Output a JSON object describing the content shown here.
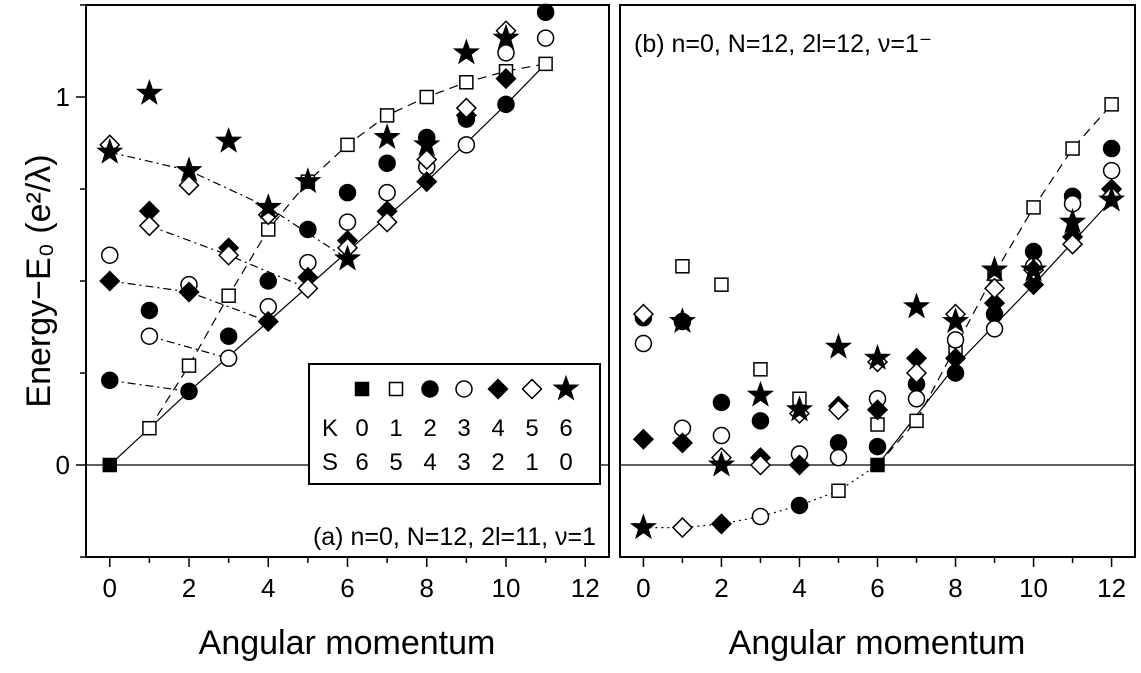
{
  "chart_data": [
    {
      "type": "scatter",
      "panel": "a",
      "annotation": "(a) n=0, N=12, 2l=11, ν=1",
      "xlabel": "Angular momentum",
      "ylabel": "Energy−E₀ (e²/λ)",
      "xlim": [
        -0.6,
        12.6
      ],
      "ylim": [
        -0.25,
        1.25
      ],
      "xticks": [
        0,
        2,
        4,
        6,
        8,
        10,
        12
      ],
      "yticks": [
        0,
        1
      ],
      "grid": false,
      "reference_line_y": 0,
      "series": [
        {
          "marker": "square-filled",
          "points": [
            [
              0,
              0.0
            ]
          ]
        },
        {
          "marker": "square-open",
          "points": [
            [
              1,
              0.1
            ],
            [
              2,
              0.27
            ],
            [
              3,
              0.46
            ],
            [
              4,
              0.64
            ],
            [
              5,
              0.77
            ],
            [
              6,
              0.87
            ],
            [
              7,
              0.95
            ],
            [
              8,
              1.0
            ],
            [
              9,
              1.04
            ],
            [
              10,
              1.07
            ],
            [
              11,
              1.09
            ]
          ]
        },
        {
          "marker": "circle-filled",
          "points": [
            [
              0,
              0.23
            ],
            [
              1,
              0.42
            ],
            [
              2,
              0.2
            ],
            [
              3,
              0.35
            ],
            [
              4,
              0.5
            ],
            [
              5,
              0.64
            ],
            [
              6,
              0.74
            ],
            [
              7,
              0.82
            ],
            [
              8,
              0.89
            ],
            [
              9,
              0.94
            ],
            [
              10,
              0.98
            ],
            [
              11,
              1.23
            ]
          ]
        },
        {
          "marker": "circle-open",
          "points": [
            [
              0,
              0.57
            ],
            [
              1,
              0.35
            ],
            [
              2,
              0.49
            ],
            [
              3,
              0.29
            ],
            [
              4,
              0.43
            ],
            [
              5,
              0.55
            ],
            [
              6,
              0.66
            ],
            [
              7,
              0.74
            ],
            [
              8,
              0.81
            ],
            [
              9,
              0.87
            ],
            [
              10,
              1.12
            ],
            [
              11,
              1.16
            ]
          ]
        },
        {
          "marker": "diamond-filled",
          "points": [
            [
              0,
              0.5
            ],
            [
              1,
              0.69
            ],
            [
              2,
              0.47
            ],
            [
              3,
              0.59
            ],
            [
              4,
              0.39
            ],
            [
              5,
              0.51
            ],
            [
              6,
              0.61
            ],
            [
              7,
              0.69
            ],
            [
              8,
              0.77
            ],
            [
              9,
              0.95
            ],
            [
              10,
              1.05
            ]
          ]
        },
        {
          "marker": "diamond-open",
          "points": [
            [
              0,
              0.87
            ],
            [
              1,
              0.65
            ],
            [
              2,
              0.76
            ],
            [
              3,
              0.57
            ],
            [
              4,
              0.68
            ],
            [
              5,
              0.48
            ],
            [
              6,
              0.59
            ],
            [
              7,
              0.66
            ],
            [
              8,
              0.83
            ],
            [
              9,
              0.97
            ],
            [
              10,
              1.18
            ]
          ]
        },
        {
          "marker": "star-filled",
          "points": [
            [
              0,
              0.85
            ],
            [
              1,
              1.01
            ],
            [
              2,
              0.8
            ],
            [
              3,
              0.88
            ],
            [
              4,
              0.7
            ],
            [
              5,
              0.77
            ],
            [
              6,
              0.56
            ],
            [
              7,
              0.89
            ],
            [
              8,
              0.87
            ],
            [
              9,
              1.12
            ],
            [
              10,
              1.16
            ]
          ]
        }
      ],
      "guide_lines": [
        {
          "style": "solid",
          "points": [
            [
              0,
              0.0
            ],
            [
              2,
              0.2
            ],
            [
              4,
              0.39
            ],
            [
              6,
              0.58
            ],
            [
              8,
              0.77
            ],
            [
              10,
              0.98
            ],
            [
              11,
              1.09
            ]
          ]
        },
        {
          "style": "dashed",
          "points": [
            [
              1,
              0.1
            ],
            [
              2,
              0.27
            ],
            [
              3,
              0.46
            ],
            [
              4,
              0.64
            ],
            [
              5,
              0.77
            ],
            [
              6,
              0.87
            ],
            [
              7,
              0.95
            ],
            [
              8,
              1.0
            ],
            [
              9,
              1.04
            ],
            [
              10,
              1.07
            ],
            [
              11,
              1.09
            ]
          ]
        },
        {
          "style": "dashdot",
          "points": [
            [
              0,
              0.23
            ],
            [
              2,
              0.2
            ]
          ]
        },
        {
          "style": "dashdot",
          "points": [
            [
              1,
              0.35
            ],
            [
              3,
              0.29
            ]
          ]
        },
        {
          "style": "dashdot",
          "points": [
            [
              0,
              0.5
            ],
            [
              2,
              0.47
            ],
            [
              4,
              0.39
            ]
          ]
        },
        {
          "style": "dashdot",
          "points": [
            [
              1,
              0.65
            ],
            [
              3,
              0.57
            ],
            [
              5,
              0.48
            ]
          ]
        },
        {
          "style": "dashdot",
          "points": [
            [
              0,
              0.85
            ],
            [
              2,
              0.8
            ],
            [
              4,
              0.7
            ],
            [
              6,
              0.56
            ]
          ]
        }
      ],
      "legend": {
        "position": "lower-right",
        "markers": [
          "square-filled",
          "square-open",
          "circle-filled",
          "circle-open",
          "diamond-filled",
          "diamond-open",
          "star-filled"
        ],
        "row_K_label": "K",
        "row_K": [
          "0",
          "1",
          "2",
          "3",
          "4",
          "5",
          "6"
        ],
        "row_S_label": "S",
        "row_S": [
          "6",
          "5",
          "4",
          "3",
          "2",
          "1",
          "0"
        ]
      }
    },
    {
      "type": "scatter",
      "panel": "b",
      "annotation": "(b) n=0, N=12, 2l=12, ν=1⁻",
      "xlabel": "Angular momentum",
      "ylabel": "",
      "xlim": [
        -0.6,
        12.6
      ],
      "ylim": [
        -0.25,
        1.25
      ],
      "xticks": [
        0,
        2,
        4,
        6,
        8,
        10,
        12
      ],
      "yticks": [],
      "grid": false,
      "reference_line_y": 0,
      "series": [
        {
          "marker": "square-filled",
          "points": [
            [
              6,
              0.0
            ]
          ]
        },
        {
          "marker": "square-open",
          "points": [
            [
              1,
              0.54
            ],
            [
              2,
              0.49
            ],
            [
              3,
              0.26
            ],
            [
              4,
              0.18
            ],
            [
              5,
              -0.07
            ],
            [
              6,
              0.11
            ],
            [
              7,
              0.12
            ],
            [
              8,
              0.32
            ],
            [
              9,
              0.52
            ],
            [
              10,
              0.7
            ],
            [
              11,
              0.86
            ],
            [
              12,
              0.98
            ]
          ]
        },
        {
          "marker": "circle-filled",
          "points": [
            [
              0,
              0.4
            ],
            [
              1,
              0.39
            ],
            [
              2,
              0.17
            ],
            [
              3,
              0.12
            ],
            [
              4,
              -0.11
            ],
            [
              5,
              0.06
            ],
            [
              6,
              0.05
            ],
            [
              7,
              0.22
            ],
            [
              8,
              0.25
            ],
            [
              9,
              0.41
            ],
            [
              10,
              0.58
            ],
            [
              11,
              0.73
            ],
            [
              12,
              0.86
            ]
          ]
        },
        {
          "marker": "circle-open",
          "points": [
            [
              0,
              0.33
            ],
            [
              1,
              0.1
            ],
            [
              2,
              0.08
            ],
            [
              3,
              -0.14
            ],
            [
              4,
              0.03
            ],
            [
              5,
              0.02
            ],
            [
              6,
              0.18
            ],
            [
              7,
              0.18
            ],
            [
              8,
              0.34
            ],
            [
              9,
              0.37
            ],
            [
              10,
              0.54
            ],
            [
              11,
              0.71
            ],
            [
              12,
              0.8
            ]
          ]
        },
        {
          "marker": "diamond-filled",
          "points": [
            [
              0,
              0.07
            ],
            [
              1,
              0.06
            ],
            [
              2,
              -0.16
            ],
            [
              3,
              0.02
            ],
            [
              4,
              0.0
            ],
            [
              5,
              0.16
            ],
            [
              6,
              0.15
            ],
            [
              7,
              0.29
            ],
            [
              8,
              0.29
            ],
            [
              9,
              0.44
            ],
            [
              10,
              0.49
            ],
            [
              11,
              0.62
            ],
            [
              12,
              0.75
            ]
          ]
        },
        {
          "marker": "diamond-open",
          "points": [
            [
              0,
              0.41
            ],
            [
              1,
              -0.17
            ],
            [
              2,
              0.02
            ],
            [
              3,
              0.0
            ],
            [
              4,
              0.14
            ],
            [
              5,
              0.15
            ],
            [
              6,
              0.28
            ],
            [
              7,
              0.25
            ],
            [
              8,
              0.41
            ],
            [
              9,
              0.48
            ],
            [
              10,
              0.53
            ],
            [
              11,
              0.6
            ],
            [
              12,
              0.73
            ]
          ]
        },
        {
          "marker": "star-filled",
          "points": [
            [
              0,
              -0.17
            ],
            [
              1,
              0.39
            ],
            [
              2,
              0.0
            ],
            [
              3,
              0.19
            ],
            [
              4,
              0.15
            ],
            [
              5,
              0.32
            ],
            [
              6,
              0.29
            ],
            [
              7,
              0.43
            ],
            [
              8,
              0.39
            ],
            [
              9,
              0.53
            ],
            [
              10,
              0.53
            ],
            [
              11,
              0.66
            ],
            [
              12,
              0.72
            ]
          ]
        }
      ],
      "guide_lines": [
        {
          "style": "solid",
          "points": [
            [
              6,
              0.0
            ],
            [
              8,
              0.27
            ],
            [
              10,
              0.49
            ],
            [
              12,
              0.72
            ]
          ]
        },
        {
          "style": "dashed",
          "points": [
            [
              6,
              0.0
            ],
            [
              7,
              0.12
            ],
            [
              8,
              0.32
            ],
            [
              9,
              0.52
            ],
            [
              10,
              0.7
            ],
            [
              11,
              0.86
            ],
            [
              12,
              0.98
            ]
          ]
        },
        {
          "style": "dotted",
          "points": [
            [
              0,
              -0.17
            ],
            [
              1,
              -0.17
            ],
            [
              2,
              -0.16
            ],
            [
              3,
              -0.14
            ],
            [
              4,
              -0.11
            ],
            [
              5,
              -0.07
            ],
            [
              6,
              0.0
            ]
          ]
        }
      ]
    }
  ]
}
